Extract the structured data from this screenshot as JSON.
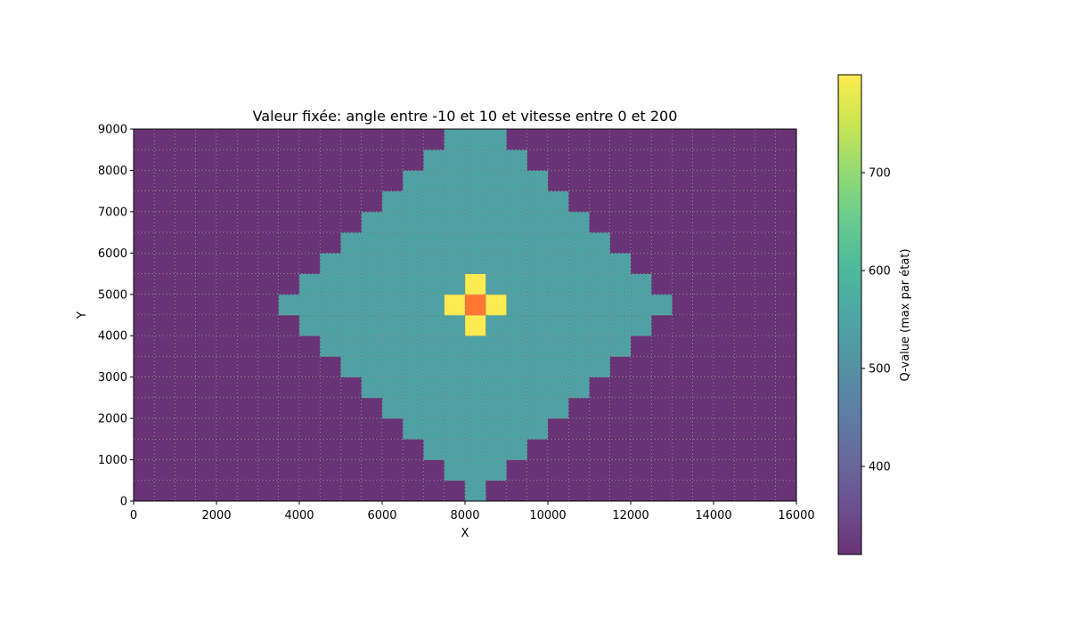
{
  "chart_data": {
    "type": "heatmap",
    "title": "Valeur fixée: angle entre -10 et 10 et vitesse entre 0 et 200",
    "xlabel": "X",
    "ylabel": "Y",
    "xlim": [
      0,
      16000
    ],
    "ylim": [
      0,
      9000
    ],
    "x_ticks": [
      0,
      2000,
      4000,
      6000,
      8000,
      10000,
      12000,
      14000,
      16000
    ],
    "y_ticks": [
      0,
      1000,
      2000,
      3000,
      4000,
      5000,
      6000,
      7000,
      8000,
      9000
    ],
    "cell_width": 500,
    "cell_height": 500,
    "grid": true,
    "colormap": "viridis",
    "cell_alpha": 0.8,
    "colorbar": {
      "label": "Q-value (max par état)",
      "vmin": 310,
      "vmax": 800,
      "ticks": [
        400,
        500,
        600,
        700
      ]
    },
    "regions": [
      {
        "description": "background",
        "value": 310
      },
      {
        "description": "diamond centered at (8250, 4750) with |dx|/500 + |dy|/500 <= 9",
        "value": 540
      },
      {
        "description": "cross neighbours of center",
        "value": 800
      },
      {
        "description": "center cell",
        "value": 930
      }
    ],
    "center": {
      "x": 8250,
      "y": 4750
    },
    "diamond_radius_cells": 9
  }
}
